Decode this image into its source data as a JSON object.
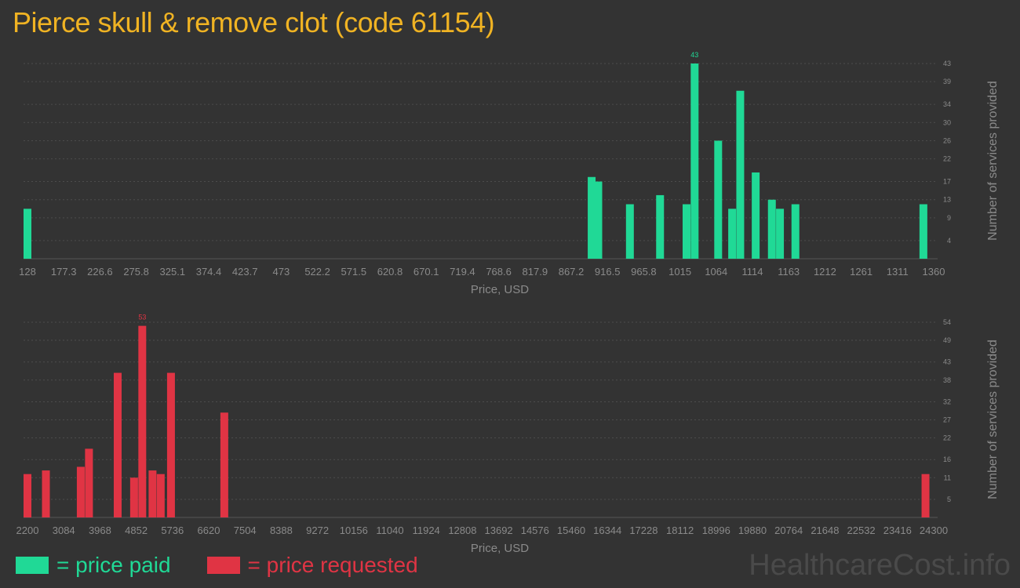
{
  "title": "Pierce skull & remove clot (code 61154)",
  "colors": {
    "paid": "#20d996",
    "requested": "#e03444",
    "title": "#f0b323",
    "axis_text": "#8a8a8a",
    "grid": "#4c4c4c"
  },
  "legend": {
    "paid_label": "= price paid",
    "requested_label": "= price requested"
  },
  "watermark": "HealthcareCost.info",
  "chart_data": [
    {
      "type": "bar",
      "series_key": "paid",
      "xlabel": "Price, USD",
      "ylabel": "Number of services provided",
      "x_ticks": [
        "128",
        "177.3",
        "226.6",
        "275.8",
        "325.1",
        "374.4",
        "423.7",
        "473",
        "522.2",
        "571.5",
        "620.8",
        "670.1",
        "719.4",
        "768.6",
        "817.9",
        "867.2",
        "916.5",
        "965.8",
        "1015",
        "1064",
        "1114",
        "1163",
        "1212",
        "1261",
        "1311",
        "1360"
      ],
      "y_ticks": [
        4,
        9,
        13,
        17,
        22,
        26,
        30,
        34,
        39,
        43
      ],
      "xlim": [
        128,
        1360
      ],
      "ylim": [
        0,
        43
      ],
      "max_label": "43",
      "bars": [
        {
          "x": 128,
          "y": 11
        },
        {
          "x": 895,
          "y": 18
        },
        {
          "x": 904,
          "y": 17
        },
        {
          "x": 947,
          "y": 12
        },
        {
          "x": 988,
          "y": 14
        },
        {
          "x": 1024,
          "y": 12
        },
        {
          "x": 1035,
          "y": 43
        },
        {
          "x": 1067,
          "y": 26
        },
        {
          "x": 1086,
          "y": 11
        },
        {
          "x": 1097,
          "y": 37
        },
        {
          "x": 1118,
          "y": 19
        },
        {
          "x": 1140,
          "y": 13
        },
        {
          "x": 1151,
          "y": 11
        },
        {
          "x": 1172,
          "y": 12
        },
        {
          "x": 1346,
          "y": 12
        }
      ]
    },
    {
      "type": "bar",
      "series_key": "requested",
      "xlabel": "Price, USD",
      "ylabel": "Number of services provided",
      "x_ticks": [
        "2200",
        "3084",
        "3968",
        "4852",
        "5736",
        "6620",
        "7504",
        "8388",
        "9272",
        "10156",
        "11040",
        "11924",
        "12808",
        "13692",
        "14576",
        "15460",
        "16344",
        "17228",
        "18112",
        "18996",
        "19880",
        "20764",
        "21648",
        "22532",
        "23416",
        "24300"
      ],
      "y_ticks": [
        5,
        11,
        16,
        22,
        27,
        32,
        38,
        43,
        49,
        54
      ],
      "xlim": [
        2200,
        24300
      ],
      "ylim": [
        0,
        54
      ],
      "max_label": "53",
      "bars": [
        {
          "x": 2200,
          "y": 12
        },
        {
          "x": 2650,
          "y": 13
        },
        {
          "x": 3500,
          "y": 14
        },
        {
          "x": 3700,
          "y": 19
        },
        {
          "x": 4400,
          "y": 40
        },
        {
          "x": 4800,
          "y": 11
        },
        {
          "x": 5000,
          "y": 53
        },
        {
          "x": 5250,
          "y": 13
        },
        {
          "x": 5450,
          "y": 12
        },
        {
          "x": 5700,
          "y": 40
        },
        {
          "x": 7000,
          "y": 29
        },
        {
          "x": 24100,
          "y": 12
        }
      ]
    }
  ]
}
